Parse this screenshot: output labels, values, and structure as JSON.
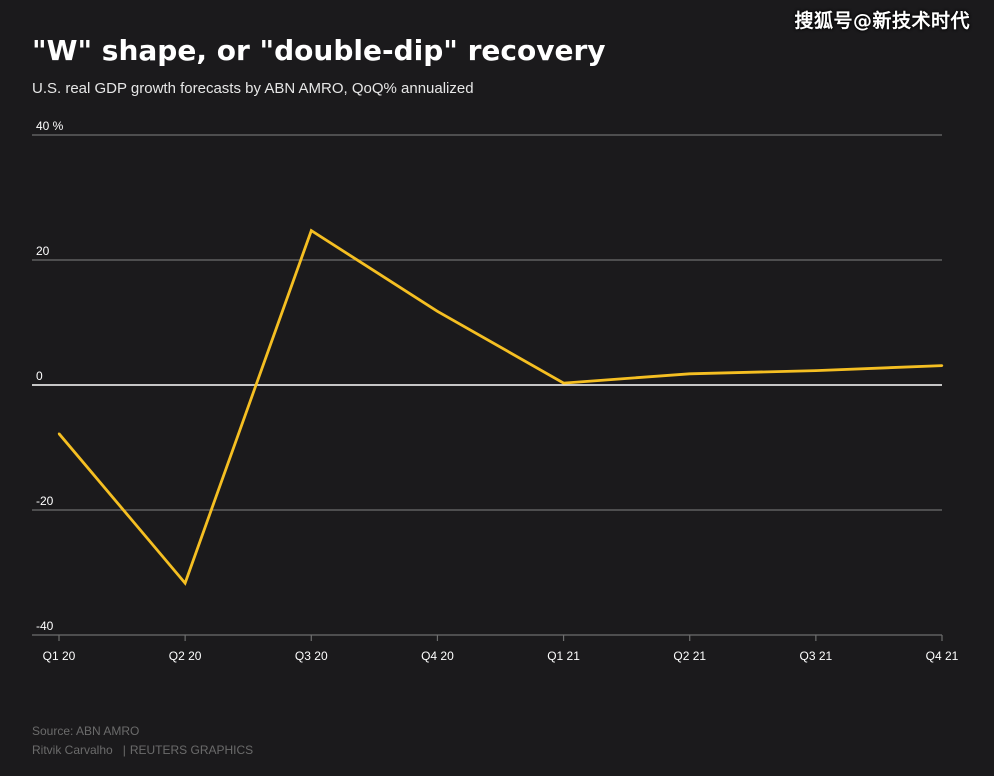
{
  "watermark": "搜狐号@新技术时代",
  "header": {
    "title": "\"W\" shape, or \"double-dip\" recovery",
    "subtitle": "U.S. real GDP growth forecasts by ABN AMRO, QoQ% annualized"
  },
  "footer": {
    "source": "Source: ABN AMRO",
    "author": "Ritvik Carvalho",
    "separator": "|",
    "agency": "REUTERS GRAPHICS"
  },
  "colors": {
    "line": "#f5bf22",
    "grid": "#6e6e6e",
    "zero_line": "#ffffff",
    "background": "#1b1a1c"
  },
  "chart_data": {
    "type": "line",
    "categories": [
      "Q1 20",
      "Q2 20",
      "Q3 20",
      "Q4 20",
      "Q1 21",
      "Q2 21",
      "Q3 21",
      "Q4 21"
    ],
    "series": [
      {
        "values": [
          -7.8,
          -31.7,
          24.7,
          11.8,
          0.3,
          1.8,
          2.3,
          3.1
        ]
      }
    ],
    "y_ticks": [
      {
        "value": 40,
        "label": "40 %"
      },
      {
        "value": 20,
        "label": "20"
      },
      {
        "value": 0,
        "label": "0"
      },
      {
        "value": -20,
        "label": "-20"
      },
      {
        "value": -40,
        "label": "-40"
      }
    ],
    "ylim": [
      -40,
      40
    ],
    "grid": true
  }
}
